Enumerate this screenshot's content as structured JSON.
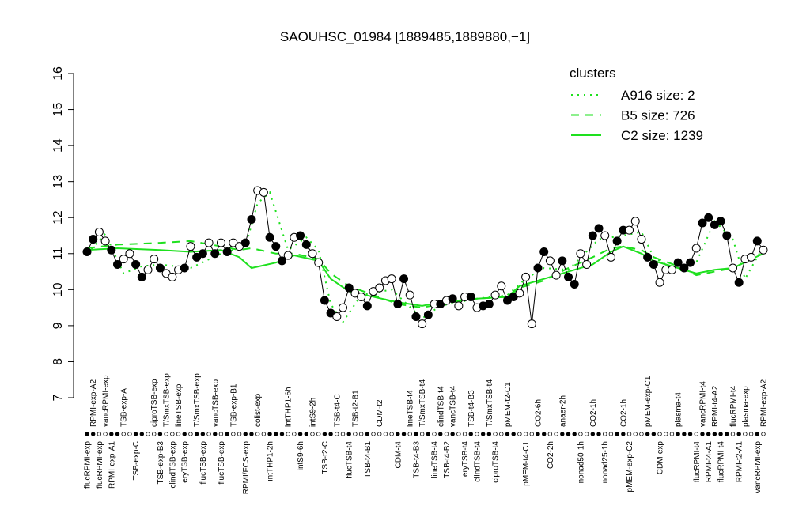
{
  "chart_data": {
    "type": "line",
    "title": "SAOUHSC_01984 [1889485,1889880,−1]",
    "ylim": [
      7,
      16
    ],
    "yticks": [
      7,
      8,
      9,
      10,
      11,
      12,
      13,
      14,
      15,
      16
    ],
    "line_color": "#000000",
    "categories": [
      "flucRPMI-exp",
      "RPMI-exp-A2",
      "flucRPMI-exp",
      "vancRPMI-exp",
      "RPMI-exp-A1",
      null,
      "TSB-exp-A",
      null,
      "TSB-exp-C",
      null,
      null,
      "ciproTSB-exp",
      "TSB-exp-B3",
      "T/SmxTSB-exp",
      "clindTSB-exp",
      "lineTSB-exp",
      "eryTSB-exp",
      null,
      "T/SmxTSB-exp",
      "flucTSB-exp",
      null,
      "vancTSB-exp",
      "flucTSB-exp",
      null,
      "TSB-exp-B1",
      null,
      "RPMI/FCS-exp",
      null,
      "colist-exp",
      null,
      "intTHP1-2h",
      null,
      null,
      "intTHP1-6h",
      null,
      "intS9-6h",
      null,
      "intS9-2h",
      null,
      "TSB-t2-C",
      null,
      "TSB-t4-C",
      null,
      "flucTSB-t4",
      "TSB-t2-B1",
      null,
      "TSB-t4-B1",
      null,
      "CDM-t2",
      null,
      null,
      "CDM-t4",
      null,
      "lineTSB-t4",
      "TSB-t4-B3",
      "T/SmxTSB-t4",
      null,
      "lineTSB-t4",
      "clindTSB-t4",
      "TSB-t4-B2",
      "vancTSB-t4",
      null,
      "eryTSB-t4",
      "TSB-t4-B3",
      "clindTSB-t4",
      null,
      "T/SmxTSB-t4",
      "ciproTSB-t4",
      null,
      "pMEM-t2-C1",
      null,
      null,
      "pMEM-t4-C1",
      null,
      "CO2-6h",
      null,
      "CO2-2h",
      null,
      "anaer-2h",
      null,
      null,
      "nonad50-1h",
      null,
      "CO2-1h",
      null,
      "nonad25-1h",
      null,
      null,
      "CO2-1h",
      "pMEM-exp-C2",
      null,
      null,
      "pMEM-exp-C1",
      null,
      "CDM-exp",
      null,
      null,
      "plasma-t4",
      null,
      null,
      "flucRPMI-t4",
      "vancRPMI-t4",
      "RPMI-t4-A1",
      "RPMI-t4-A2",
      "flucRPMI-t4",
      null,
      "flucRPMI-t4",
      "RPMI-t2-A1",
      "plasma-exp",
      null,
      "vancRPMI-exp",
      "RPMI-exp-A2"
    ],
    "values": [
      11.05,
      11.4,
      11.6,
      11.35,
      11.1,
      10.7,
      10.85,
      11.0,
      10.7,
      10.35,
      10.55,
      10.85,
      10.6,
      10.45,
      10.35,
      10.55,
      10.6,
      11.2,
      10.9,
      11.0,
      11.3,
      11.0,
      11.3,
      11.05,
      11.3,
      11.2,
      11.3,
      11.95,
      12.75,
      12.7,
      11.45,
      11.2,
      10.8,
      10.95,
      11.45,
      11.5,
      11.25,
      11.0,
      10.75,
      9.7,
      9.35,
      9.25,
      9.5,
      10.05,
      9.9,
      9.8,
      9.55,
      9.95,
      10.05,
      10.25,
      10.3,
      9.6,
      10.3,
      9.85,
      9.25,
      9.05,
      9.3,
      9.6,
      9.6,
      9.7,
      9.75,
      9.55,
      9.8,
      9.8,
      9.5,
      9.55,
      9.6,
      9.85,
      10.1,
      9.7,
      9.8,
      9.9,
      10.35,
      9.05,
      10.6,
      11.05,
      10.8,
      10.4,
      10.8,
      10.35,
      10.15,
      11.0,
      10.7,
      11.5,
      11.7,
      11.5,
      10.9,
      11.35,
      11.65,
      11.65,
      11.9,
      11.4,
      10.9,
      10.7,
      10.2,
      10.55,
      10.55,
      10.75,
      10.6,
      10.75,
      11.15,
      11.85,
      12.0,
      11.8,
      11.9,
      11.5,
      10.6,
      10.2,
      10.85,
      10.9,
      11.35,
      11.1
    ],
    "marker_fills": [
      "#000",
      "#000",
      "#fff",
      "#fff",
      "#000",
      "#000",
      "#fff",
      "#fff",
      "#000",
      "#000",
      "#fff",
      "#fff",
      "#000",
      "#fff",
      "#fff",
      "#fff",
      "#000",
      "#fff",
      "#000",
      "#000",
      "#fff",
      "#000",
      "#fff",
      "#000",
      "#fff",
      "#fff",
      "#000",
      "#000",
      "#fff",
      "#fff",
      "#000",
      "#000",
      "#000",
      "#fff",
      "#fff",
      "#000",
      "#000",
      "#fff",
      "#fff",
      "#000",
      "#000",
      "#fff",
      "#fff",
      "#000",
      "#fff",
      "#fff",
      "#000",
      "#fff",
      "#fff",
      "#fff",
      "#fff",
      "#000",
      "#000",
      "#fff",
      "#000",
      "#fff",
      "#000",
      "#fff",
      "#000",
      "#fff",
      "#000",
      "#fff",
      "#fff",
      "#000",
      "#fff",
      "#000",
      "#000",
      "#fff",
      "#fff",
      "#000",
      "#000",
      "#fff",
      "#fff",
      "#fff",
      "#000",
      "#000",
      "#fff",
      "#fff",
      "#000",
      "#000",
      "#000",
      "#fff",
      "#fff",
      "#000",
      "#000",
      "#fff",
      "#fff",
      "#000",
      "#000",
      "#fff",
      "#fff",
      "#fff",
      "#000",
      "#000",
      "#fff",
      "#fff",
      "#fff",
      "#000",
      "#000",
      "#000",
      "#fff",
      "#000",
      "#000",
      "#000",
      "#000",
      "#000",
      "#fff",
      "#000",
      "#fff",
      "#fff",
      "#000",
      "#fff"
    ],
    "legend_title": "clusters",
    "clusters": [
      {
        "name": "A916 size: 2",
        "style": "dotted",
        "color": "#1ee01e",
        "x": [
          0,
          3,
          6,
          9,
          12,
          17,
          22,
          26,
          28,
          30,
          33,
          36,
          38,
          40,
          42,
          45,
          50,
          55,
          58,
          64,
          69,
          72,
          75,
          79,
          84,
          88,
          91,
          93,
          97,
          100,
          103,
          106,
          108,
          111
        ],
        "values": [
          11.0,
          11.55,
          10.45,
          10.65,
          10.7,
          10.6,
          11.0,
          11.2,
          12.4,
          12.7,
          11.1,
          11.45,
          11.1,
          9.6,
          9.1,
          9.85,
          10.0,
          9.2,
          9.55,
          9.75,
          9.85,
          10.3,
          10.6,
          10.55,
          11.4,
          11.5,
          11.6,
          10.9,
          10.5,
          10.75,
          11.9,
          11.4,
          10.3,
          11.2
        ]
      },
      {
        "name": "B5 size: 726",
        "style": "dashed",
        "color": "#1ee01e",
        "x": [
          0,
          5,
          12,
          17,
          22,
          25,
          27,
          31,
          34,
          38,
          40,
          43,
          47,
          51,
          55,
          58,
          64,
          69,
          71,
          75,
          79,
          83,
          86,
          88,
          91,
          93,
          97,
          100,
          103,
          106,
          111
        ],
        "values": [
          11.15,
          11.25,
          11.3,
          11.35,
          11.2,
          11.1,
          11.15,
          11.0,
          11.0,
          10.85,
          10.45,
          10.1,
          9.85,
          9.6,
          9.5,
          9.6,
          9.75,
          9.8,
          10.05,
          10.25,
          10.6,
          10.9,
          11.15,
          11.2,
          11.1,
          10.9,
          10.65,
          10.4,
          10.5,
          10.6,
          11.0
        ]
      },
      {
        "name": "C2 size: 1239",
        "style": "solid",
        "color": "#1ee01e",
        "x": [
          0,
          5,
          12,
          17,
          22,
          25,
          27,
          31,
          34,
          38,
          40,
          43,
          47,
          51,
          55,
          58,
          64,
          69,
          71,
          75,
          79,
          83,
          86,
          88,
          91,
          93,
          97,
          100,
          103,
          106,
          111
        ],
        "values": [
          11.1,
          11.15,
          11.1,
          11.05,
          11.1,
          10.9,
          10.6,
          10.75,
          10.95,
          10.8,
          10.3,
          9.95,
          9.8,
          9.65,
          9.55,
          9.65,
          9.75,
          9.8,
          10.1,
          10.3,
          10.5,
          10.7,
          11.05,
          11.2,
          11.0,
          10.8,
          10.6,
          10.45,
          10.55,
          10.6,
          11.0
        ]
      }
    ]
  }
}
